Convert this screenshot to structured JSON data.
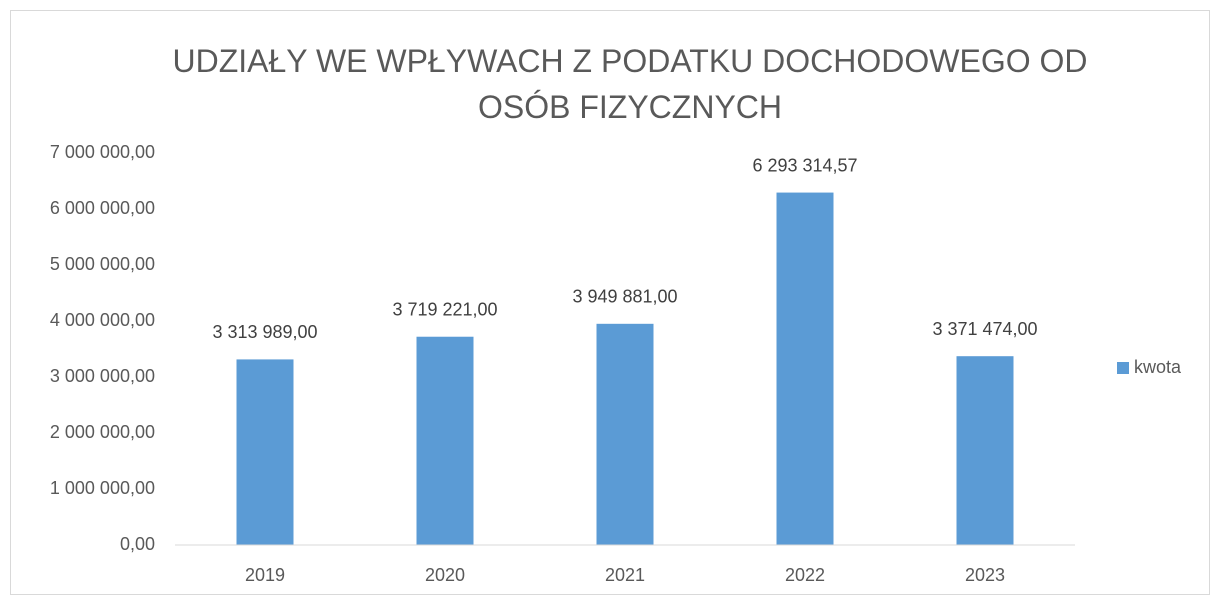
{
  "chart_data": {
    "type": "bar",
    "title": "UDZIAŁY WE WPŁYWACH Z PODATKU DOCHODOWEGO OD OSÓB FIZYCZNYCH",
    "categories": [
      "2019",
      "2020",
      "2021",
      "2022",
      "2023"
    ],
    "series": [
      {
        "name": "kwota",
        "color": "#5b9bd5",
        "values": [
          3313989,
          3719221,
          3949881,
          6293314.57,
          3371474
        ],
        "value_labels": [
          "3 313 989,00",
          "3 719 221,00",
          "3 949 881,00",
          "6 293 314,57",
          "3 371 474,00"
        ]
      }
    ],
    "ylim": [
      0,
      7000000
    ],
    "yticks": [
      {
        "value": 0,
        "label": "0,00"
      },
      {
        "value": 1000000,
        "label": "1 000 000,00"
      },
      {
        "value": 2000000,
        "label": "2 000 000,00"
      },
      {
        "value": 3000000,
        "label": "3 000 000,00"
      },
      {
        "value": 4000000,
        "label": "4 000 000,00"
      },
      {
        "value": 5000000,
        "label": "5 000 000,00"
      },
      {
        "value": 6000000,
        "label": "6 000 000,00"
      },
      {
        "value": 7000000,
        "label": "7 000 000,00"
      }
    ],
    "grid": false,
    "legend": "right"
  }
}
